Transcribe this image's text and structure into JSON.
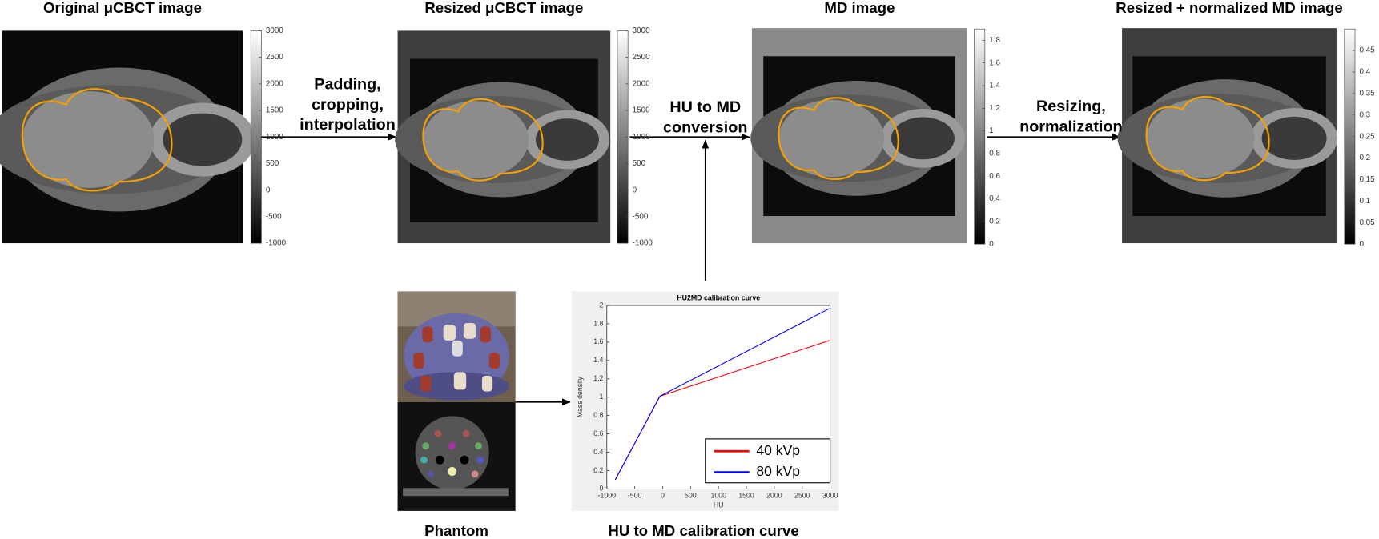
{
  "panels": [
    {
      "title": "Original μCBCT image",
      "colorbar": {
        "lim": [
          -1000,
          3000
        ],
        "ticks": [
          3000,
          2500,
          2000,
          1500,
          1000,
          500,
          0,
          -500,
          -1000
        ]
      }
    },
    {
      "title": "Resized μCBCT image",
      "colorbar": {
        "lim": [
          -1000,
          3000
        ],
        "ticks": [
          3000,
          2500,
          2000,
          1500,
          1000,
          500,
          0,
          -500,
          -1000
        ]
      }
    },
    {
      "title": "MD image",
      "colorbar": {
        "lim": [
          0,
          1.9
        ],
        "ticks": [
          1.8,
          1.6,
          1.4,
          1.2,
          1,
          0.8,
          0.6,
          0.4,
          0.2,
          0
        ]
      }
    },
    {
      "title": "Resized + normalized MD image",
      "colorbar": {
        "lim": [
          0,
          0.5
        ],
        "ticks": [
          0.45,
          0.4,
          0.35,
          0.3,
          0.25,
          0.2,
          0.15,
          0.1,
          0.05,
          0
        ]
      }
    }
  ],
  "arrows": [
    {
      "label": [
        "Padding,",
        "cropping,",
        "interpolation"
      ]
    },
    {
      "label": [
        "HU to MD",
        "conversion"
      ]
    },
    {
      "label": [
        "Resizing,",
        "normalization"
      ]
    }
  ],
  "phantom": {
    "caption": "Phantom"
  },
  "calibration": {
    "caption": "HU to MD calibration curve",
    "chart_data": {
      "type": "line",
      "title": "HU2MD calibration curve",
      "x_label": "HU",
      "y_label": "Mass density",
      "x": [
        -850,
        -50,
        3000
      ],
      "series": [
        {
          "name": "40 kVp",
          "color": "#ff0000",
          "values": [
            0.1,
            1.01,
            1.62
          ]
        },
        {
          "name": "80 kVp",
          "color": "#0000ff",
          "values": [
            0.1,
            1.01,
            1.97
          ]
        }
      ],
      "xlim": [
        -1000,
        3000
      ],
      "xticks": [
        -1000,
        -500,
        0,
        500,
        1000,
        1500,
        2000,
        2500,
        3000
      ],
      "ylim": [
        0,
        2
      ],
      "yticks": [
        0,
        0.2,
        0.4,
        0.6,
        0.8,
        1,
        1.2,
        1.4,
        1.6,
        1.8,
        2
      ],
      "legend": "lower right"
    }
  }
}
